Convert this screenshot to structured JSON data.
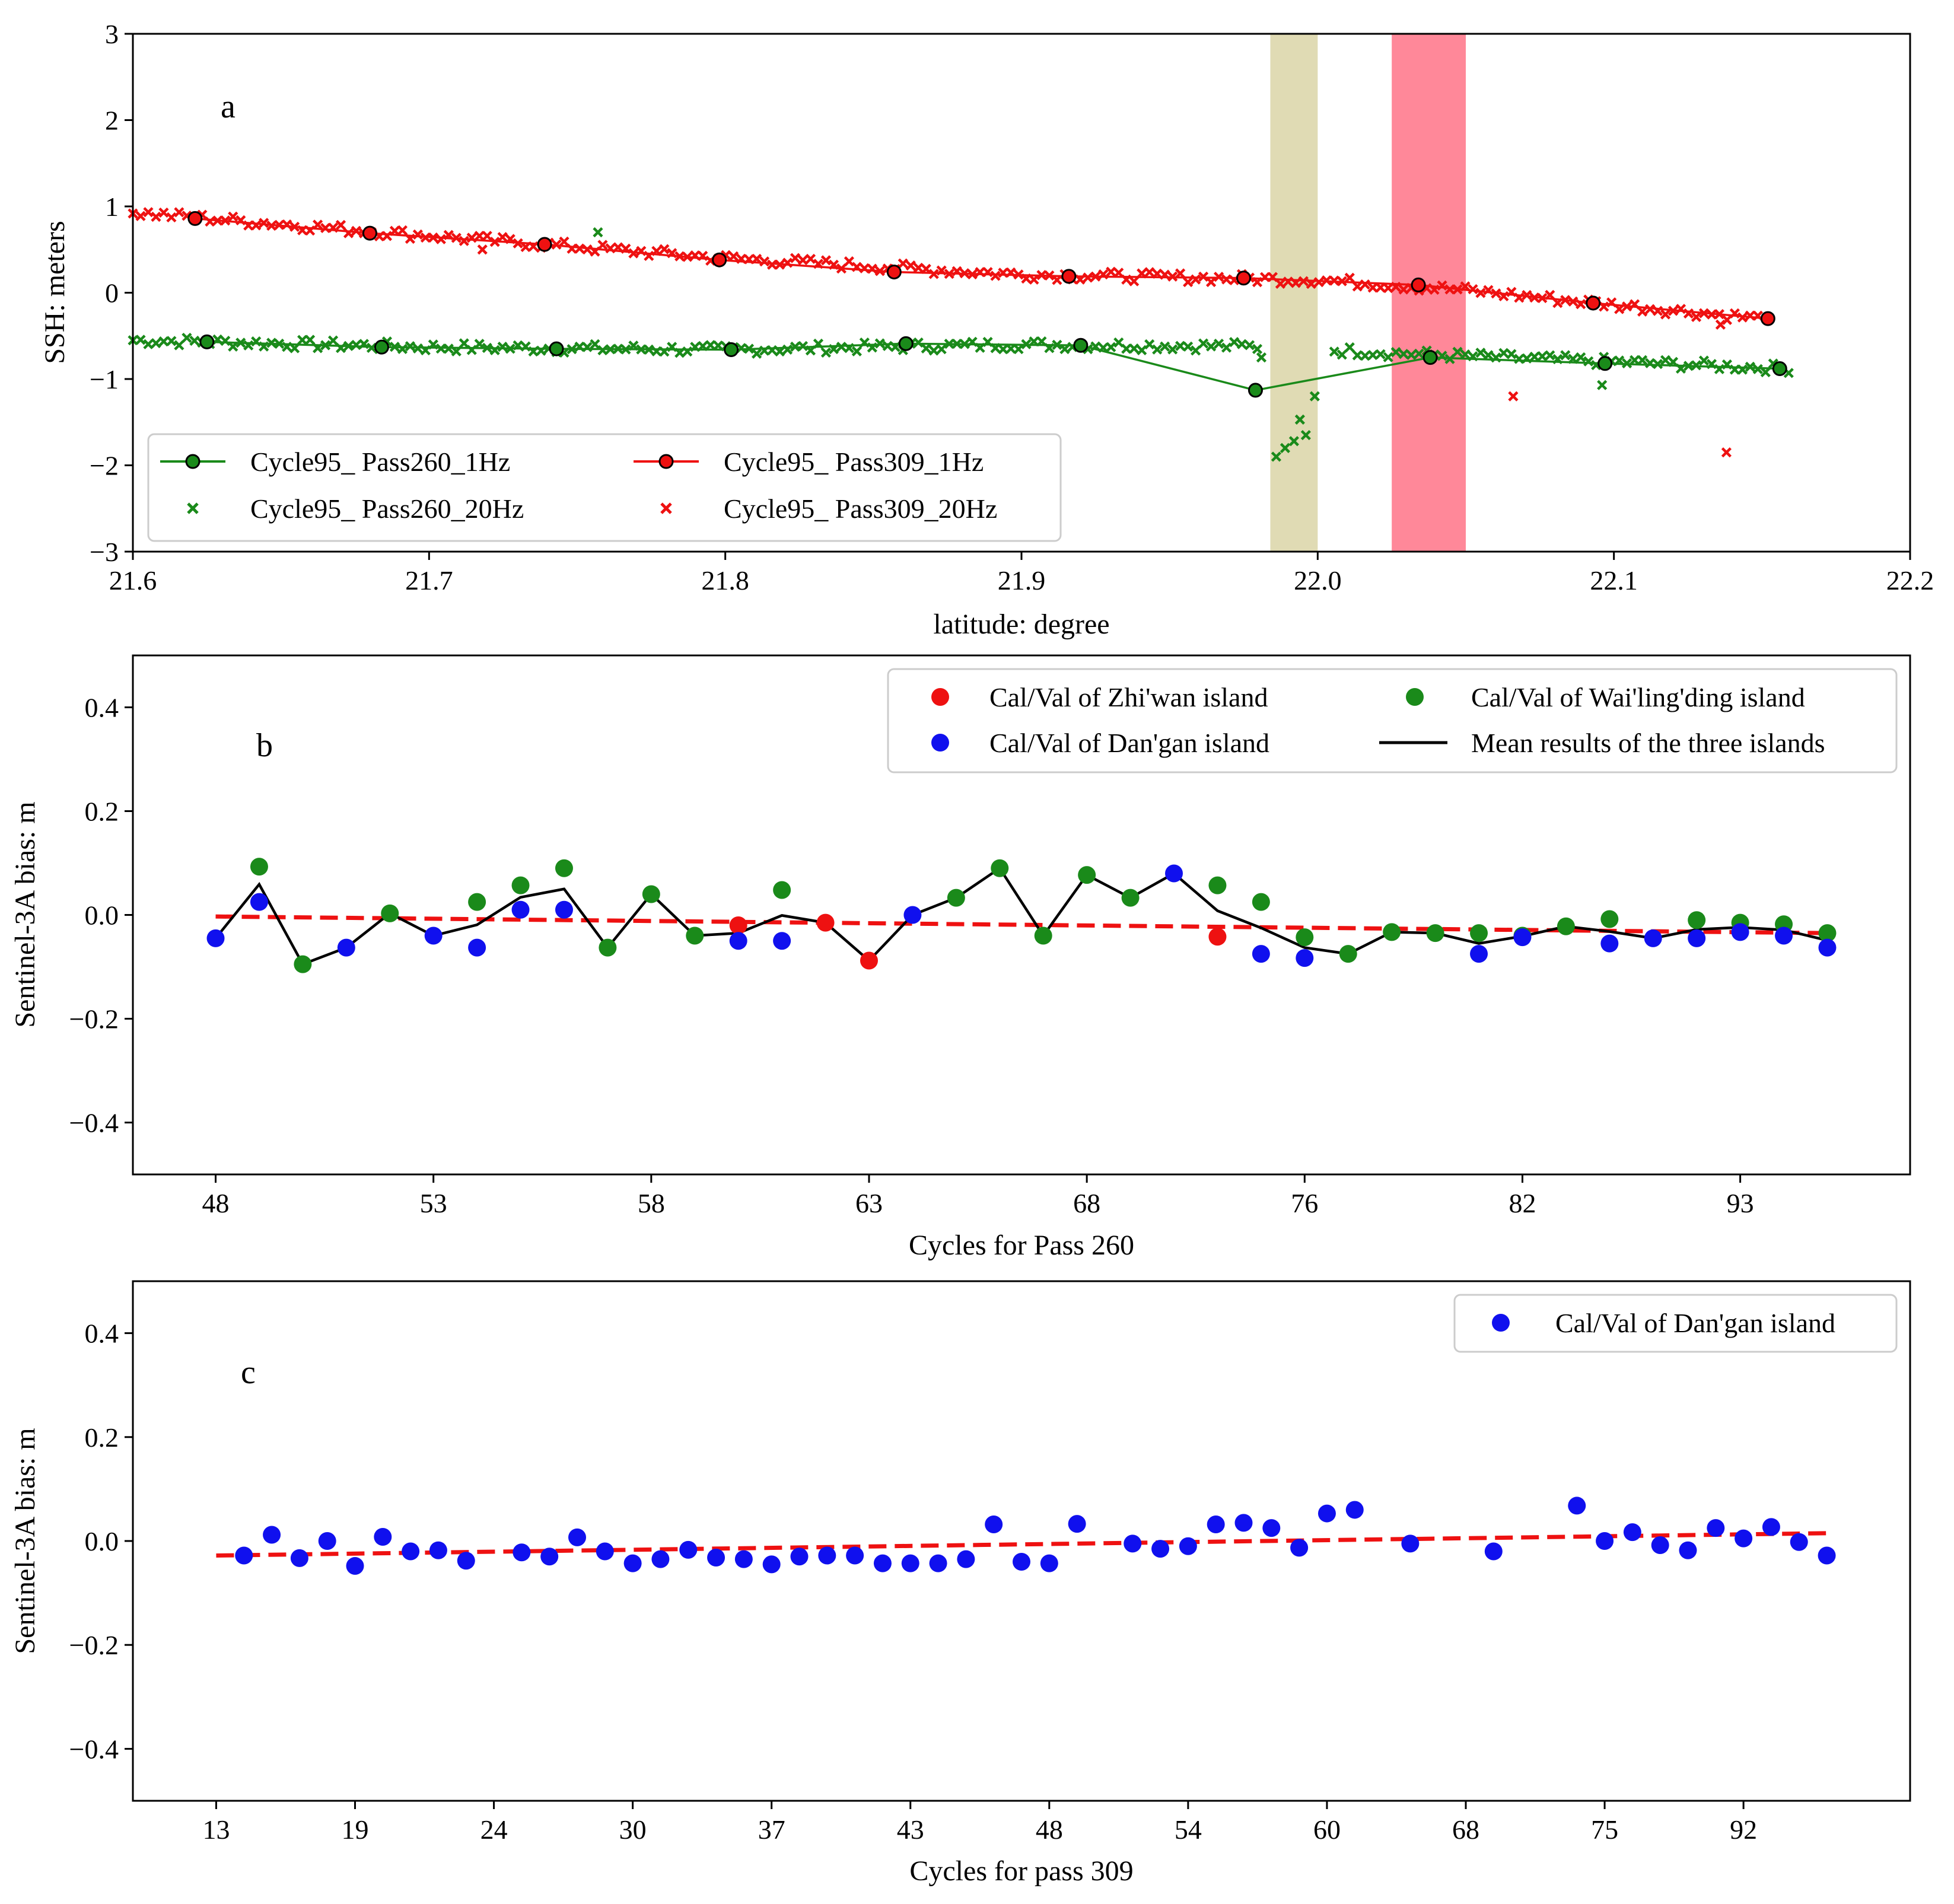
{
  "chart_data": [
    {
      "id": "a",
      "type": "line",
      "panel_label": "a",
      "xlabel": "latitude: degree",
      "ylabel": "SSH: meters",
      "xlim": [
        21.6,
        22.2
      ],
      "ylim": [
        -3,
        3
      ],
      "xticks": [
        21.6,
        21.7,
        21.8,
        21.9,
        22.0,
        22.1,
        22.2
      ],
      "xtick_labels": [
        "21.6",
        "21.7",
        "21.8",
        "21.9",
        "22.0",
        "22.1",
        "22.2"
      ],
      "yticks": [
        -3,
        -2,
        -1,
        0,
        1,
        2,
        3
      ],
      "ytick_labels": [
        "−3",
        "−2",
        "−1",
        "0",
        "1",
        "2",
        "3"
      ],
      "shaded_bands": [
        {
          "x0": 21.984,
          "x1": 22.0,
          "color": "#e0dbb4"
        },
        {
          "x0": 22.025,
          "x1": 22.05,
          "color": "#ff8899"
        }
      ],
      "series": [
        {
          "name": "Cycle95_ Pass260_1Hz",
          "kind": "line-marker",
          "color": "#1a8a1a",
          "x": [
            21.625,
            21.684,
            21.743,
            21.802,
            21.861,
            21.92,
            21.979,
            22.038,
            22.097,
            22.156
          ],
          "y": [
            -0.57,
            -0.63,
            -0.65,
            -0.66,
            -0.59,
            -0.61,
            -1.13,
            -0.75,
            -0.82,
            -0.88
          ]
        },
        {
          "name": "Cycle95_ Pass309_1Hz",
          "kind": "line-marker",
          "color": "#ee1111",
          "x": [
            21.621,
            21.68,
            21.739,
            21.798,
            21.857,
            21.916,
            21.975,
            22.034,
            22.093,
            22.152
          ],
          "y": [
            0.86,
            0.69,
            0.56,
            0.38,
            0.24,
            0.19,
            0.17,
            0.09,
            -0.12,
            -0.3
          ]
        },
        {
          "name": "Cycle95_ Pass260_20Hz",
          "kind": "scatter-x",
          "color": "#1a8a1a",
          "trend": {
            "x": [
              21.6,
              21.7,
              21.8,
              21.9,
              21.975,
              22.04,
              22.1,
              22.16
            ],
            "y": [
              -0.55,
              -0.63,
              -0.66,
              -0.6,
              -0.62,
              -0.72,
              -0.8,
              -0.88
            ]
          },
          "gap": [
            21.982,
            22.005
          ],
          "outliers": [
            {
              "x": 21.757,
              "y": 0.7
            },
            {
              "x": 21.986,
              "y": -1.9
            },
            {
              "x": 21.989,
              "y": -1.8
            },
            {
              "x": 21.992,
              "y": -1.72
            },
            {
              "x": 21.994,
              "y": -1.47
            },
            {
              "x": 21.996,
              "y": -1.65
            },
            {
              "x": 21.999,
              "y": -1.2
            },
            {
              "x": 21.981,
              "y": -0.75
            },
            {
              "x": 22.096,
              "y": -1.07
            }
          ]
        },
        {
          "name": "Cycle95_ Pass309_20Hz",
          "kind": "scatter-x",
          "color": "#ee1111",
          "trend": {
            "x": [
              21.6,
              21.7,
              21.8,
              21.9,
              22.0,
              22.05,
              22.1,
              22.15
            ],
            "y": [
              0.93,
              0.66,
              0.4,
              0.21,
              0.15,
              0.03,
              -0.14,
              -0.3
            ]
          },
          "gap": null,
          "outliers": [
            {
              "x": 22.066,
              "y": -1.2
            },
            {
              "x": 22.138,
              "y": -1.85
            },
            {
              "x": 22.136,
              "y": -0.37
            },
            {
              "x": 21.718,
              "y": 0.5
            }
          ]
        }
      ],
      "legend": {
        "position": "lower-left",
        "entries": [
          {
            "label": "Cycle95_ Pass260_1Hz",
            "marker": "line-circle",
            "color": "#1a8a1a"
          },
          {
            "label": "Cycle95_ Pass309_1Hz",
            "marker": "line-circle",
            "color": "#ee1111"
          },
          {
            "label": "Cycle95_ Pass260_20Hz",
            "marker": "x",
            "color": "#1a8a1a"
          },
          {
            "label": "Cycle95_ Pass309_20Hz",
            "marker": "x",
            "color": "#ee1111"
          }
        ]
      }
    },
    {
      "id": "b",
      "type": "scatter",
      "panel_label": "b",
      "xlabel": "Cycles for Pass 260",
      "ylabel": "Sentinel-3A bias: m",
      "ylim": [
        -0.5,
        0.5
      ],
      "yticks": [
        -0.4,
        -0.2,
        0.0,
        0.2,
        0.4
      ],
      "ytick_labels": [
        "−0.4",
        "−0.2",
        "0.0",
        "0.2",
        "0.4"
      ],
      "xtick_positions": [
        0,
        5,
        10,
        15,
        20,
        25,
        30,
        35
      ],
      "xtick_labels": [
        "48",
        "53",
        "58",
        "63",
        "68",
        "76",
        "82",
        "93"
      ],
      "xlim": [
        -1.9,
        38.9
      ],
      "series": [
        {
          "name": "Cal/Val of Zhi'wan island",
          "color": "#ee1111",
          "points": [
            [
              12,
              -0.02
            ],
            [
              14,
              -0.015
            ],
            [
              15,
              -0.088
            ],
            [
              23,
              -0.042
            ]
          ]
        },
        {
          "name": "Cal/Val of Wai'ling'ding island",
          "color": "#1a8a1a",
          "points": [
            [
              1,
              0.093
            ],
            [
              2,
              -0.095
            ],
            [
              4,
              0.003
            ],
            [
              6,
              0.025
            ],
            [
              7,
              0.057
            ],
            [
              8,
              0.09
            ],
            [
              9,
              -0.063
            ],
            [
              10,
              0.04
            ],
            [
              11,
              -0.04
            ],
            [
              13,
              0.048
            ],
            [
              17,
              0.033
            ],
            [
              18,
              0.09
            ],
            [
              19,
              -0.04
            ],
            [
              20,
              0.077
            ],
            [
              21,
              0.033
            ],
            [
              23,
              0.057
            ],
            [
              24,
              0.025
            ],
            [
              25,
              -0.043
            ],
            [
              26,
              -0.075
            ],
            [
              27,
              -0.033
            ],
            [
              28,
              -0.035
            ],
            [
              29,
              -0.035
            ],
            [
              30,
              -0.04
            ],
            [
              31,
              -0.022
            ],
            [
              32,
              -0.008
            ],
            [
              34,
              -0.01
            ],
            [
              35,
              -0.015
            ],
            [
              36,
              -0.018
            ],
            [
              37,
              -0.035
            ]
          ]
        },
        {
          "name": "Cal/Val of Dan'gan island",
          "color": "#1010ee",
          "points": [
            [
              0,
              -0.045
            ],
            [
              1,
              0.025
            ],
            [
              3,
              -0.063
            ],
            [
              5,
              -0.04
            ],
            [
              6,
              -0.063
            ],
            [
              7,
              0.01
            ],
            [
              8,
              0.01
            ],
            [
              12,
              -0.05
            ],
            [
              13,
              -0.05
            ],
            [
              16,
              0.0
            ],
            [
              22,
              0.08
            ],
            [
              24,
              -0.075
            ],
            [
              25,
              -0.083
            ],
            [
              29,
              -0.075
            ],
            [
              30,
              -0.043
            ],
            [
              32,
              -0.055
            ],
            [
              33,
              -0.045
            ],
            [
              34,
              -0.045
            ],
            [
              35,
              -0.033
            ],
            [
              36,
              -0.04
            ],
            [
              37,
              -0.063
            ]
          ]
        },
        {
          "name": "Mean results of the three islands",
          "color": "#000000",
          "kind": "line",
          "points": [
            [
              0,
              -0.045
            ],
            [
              1,
              0.059
            ],
            [
              2,
              -0.095
            ],
            [
              3,
              -0.063
            ],
            [
              4,
              0.003
            ],
            [
              5,
              -0.04
            ],
            [
              6,
              -0.019
            ],
            [
              7,
              0.034
            ],
            [
              8,
              0.05
            ],
            [
              9,
              -0.063
            ],
            [
              10,
              0.04
            ],
            [
              11,
              -0.04
            ],
            [
              12,
              -0.035
            ],
            [
              13,
              -0.001
            ],
            [
              14,
              -0.015
            ],
            [
              15,
              -0.088
            ],
            [
              16,
              0.0
            ],
            [
              17,
              0.033
            ],
            [
              18,
              0.09
            ],
            [
              19,
              -0.04
            ],
            [
              20,
              0.077
            ],
            [
              21,
              0.033
            ],
            [
              22,
              0.08
            ],
            [
              23,
              0.008
            ],
            [
              24,
              -0.025
            ],
            [
              25,
              -0.063
            ],
            [
              26,
              -0.075
            ],
            [
              27,
              -0.033
            ],
            [
              28,
              -0.035
            ],
            [
              29,
              -0.055
            ],
            [
              30,
              -0.041
            ],
            [
              31,
              -0.022
            ],
            [
              32,
              -0.032
            ],
            [
              33,
              -0.045
            ],
            [
              34,
              -0.028
            ],
            [
              35,
              -0.024
            ],
            [
              36,
              -0.029
            ],
            [
              37,
              -0.049
            ]
          ]
        }
      ],
      "trendline": {
        "color": "#ee1111",
        "style": "dashed",
        "x": [
          0,
          37
        ],
        "y": [
          -0.003,
          -0.035
        ]
      },
      "legend": {
        "position": "top-right",
        "entries": [
          {
            "label": "Cal/Val of Zhi'wan island",
            "marker": "dot",
            "color": "#ee1111"
          },
          {
            "label": "Cal/Val of Wai'ling'ding island",
            "marker": "dot",
            "color": "#1a8a1a"
          },
          {
            "label": "Cal/Val of Dan'gan island",
            "marker": "dot",
            "color": "#1010ee"
          },
          {
            "label": "Mean results of the three islands",
            "marker": "line",
            "color": "#000000"
          }
        ]
      }
    },
    {
      "id": "c",
      "type": "scatter",
      "panel_label": "c",
      "xlabel": "Cycles for pass 309",
      "ylabel": "Sentinel-3A bias: m",
      "ylim": [
        -0.5,
        0.5
      ],
      "yticks": [
        -0.4,
        -0.2,
        0.0,
        0.2,
        0.4
      ],
      "ytick_labels": [
        "−0.4",
        "−0.2",
        "0.0",
        "0.2",
        "0.4"
      ],
      "xtick_positions": [
        0,
        5,
        10,
        15,
        20,
        25,
        30,
        35,
        40,
        45,
        50,
        55
      ],
      "xtick_labels": [
        "13",
        "19",
        "24",
        "30",
        "37",
        "43",
        "48",
        "54",
        "60",
        "68",
        "75",
        "92"
      ],
      "xlim": [
        -3,
        61
      ],
      "series": [
        {
          "name": "Cal/Val of Dan'gan island",
          "color": "#1010ee",
          "points": [
            [
              1,
              -0.028
            ],
            [
              2,
              0.012
            ],
            [
              3,
              -0.033
            ],
            [
              4,
              0.0
            ],
            [
              5,
              -0.048
            ],
            [
              6,
              0.008
            ],
            [
              7,
              -0.02
            ],
            [
              8,
              -0.018
            ],
            [
              9,
              -0.038
            ],
            [
              11,
              -0.022
            ],
            [
              12,
              -0.03
            ],
            [
              13,
              0.007
            ],
            [
              14,
              -0.02
            ],
            [
              15,
              -0.043
            ],
            [
              16,
              -0.035
            ],
            [
              17,
              -0.017
            ],
            [
              18,
              -0.032
            ],
            [
              19,
              -0.035
            ],
            [
              20,
              -0.045
            ],
            [
              21,
              -0.03
            ],
            [
              22,
              -0.028
            ],
            [
              23,
              -0.028
            ],
            [
              24,
              -0.043
            ],
            [
              25,
              -0.043
            ],
            [
              26,
              -0.043
            ],
            [
              27,
              -0.035
            ],
            [
              28,
              0.032
            ],
            [
              29,
              -0.04
            ],
            [
              30,
              -0.043
            ],
            [
              31,
              0.033
            ],
            [
              33,
              -0.005
            ],
            [
              34,
              -0.015
            ],
            [
              35,
              -0.01
            ],
            [
              36,
              0.032
            ],
            [
              37,
              0.035
            ],
            [
              38,
              0.025
            ],
            [
              39,
              -0.013
            ],
            [
              40,
              0.053
            ],
            [
              41,
              0.06
            ],
            [
              43,
              -0.005
            ],
            [
              46,
              -0.02
            ],
            [
              49,
              0.068
            ],
            [
              50,
              0.0
            ],
            [
              51,
              0.017
            ],
            [
              52,
              -0.008
            ],
            [
              53,
              -0.018
            ],
            [
              54,
              0.025
            ],
            [
              55,
              0.005
            ],
            [
              56,
              0.027
            ],
            [
              57,
              -0.002
            ],
            [
              58,
              -0.028
            ]
          ]
        }
      ],
      "trendline": {
        "color": "#ee1111",
        "style": "dashed",
        "x": [
          0,
          58
        ],
        "y": [
          -0.028,
          0.015
        ]
      },
      "legend": {
        "position": "top-right",
        "entries": [
          {
            "label": "Cal/Val of Dan'gan island",
            "marker": "dot",
            "color": "#1010ee"
          }
        ]
      }
    }
  ]
}
